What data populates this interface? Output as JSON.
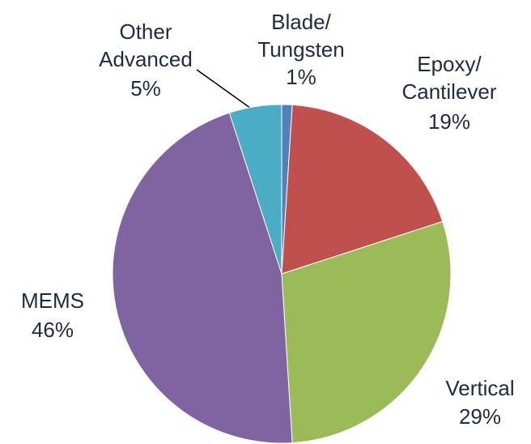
{
  "chart_data": {
    "type": "pie",
    "categories": [
      "Blade/\nTungsten",
      "Epoxy/\nCantilever",
      "Vertical",
      "MEMS",
      "Other\nAdvanced"
    ],
    "values": [
      1,
      19,
      29,
      46,
      5
    ],
    "value_labels": [
      "1%",
      "19%",
      "29%",
      "46%",
      "5%"
    ],
    "colors": [
      "#4f81bd",
      "#c0504d",
      "#9bbb59",
      "#8064a2",
      "#4bacc6"
    ]
  }
}
